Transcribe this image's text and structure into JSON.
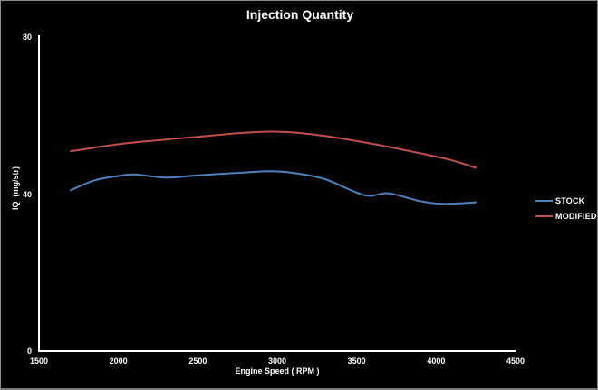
{
  "chart_data": {
    "type": "line",
    "title": "Injection Quantity",
    "xlabel": "Engine Speed ( RPM )",
    "ylabel": "IQ  (mg/str)",
    "xlim": [
      1500,
      4500
    ],
    "ylim": [
      0,
      80
    ],
    "x_ticks": [
      1500,
      2000,
      2500,
      3000,
      3500,
      4000,
      4500
    ],
    "y_ticks": [
      0,
      40,
      80
    ],
    "grid": false,
    "legend_position": "right-middle",
    "colors": {
      "background": "#010101",
      "axis": "#ffffff",
      "text": "#ffffff",
      "stock_line": "#4f81bd",
      "modified_line": "#c0504d"
    },
    "series": [
      {
        "name": "STOCK",
        "color": "#4f81bd",
        "points": [
          [
            1700,
            41.0
          ],
          [
            1850,
            43.5
          ],
          [
            2000,
            44.6
          ],
          [
            2100,
            45.0
          ],
          [
            2300,
            44.2
          ],
          [
            2500,
            44.8
          ],
          [
            2750,
            45.4
          ],
          [
            2950,
            45.8
          ],
          [
            3100,
            45.4
          ],
          [
            3300,
            43.8
          ],
          [
            3550,
            39.7
          ],
          [
            3700,
            40.2
          ],
          [
            3900,
            38.2
          ],
          [
            4050,
            37.5
          ],
          [
            4250,
            37.9
          ]
        ]
      },
      {
        "name": "MODIFIED",
        "color": "#c0504d",
        "points": [
          [
            1700,
            50.9
          ],
          [
            2000,
            52.7
          ],
          [
            2300,
            53.9
          ],
          [
            2500,
            54.6
          ],
          [
            2750,
            55.5
          ],
          [
            2950,
            55.9
          ],
          [
            3100,
            55.7
          ],
          [
            3300,
            54.8
          ],
          [
            3600,
            52.8
          ],
          [
            3900,
            50.4
          ],
          [
            4100,
            48.6
          ],
          [
            4250,
            46.7
          ]
        ]
      }
    ]
  }
}
